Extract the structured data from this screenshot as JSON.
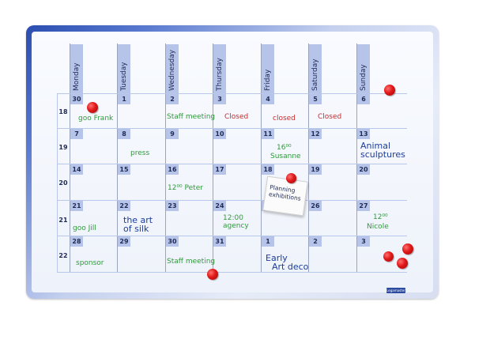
{
  "days": [
    "Monday",
    "Tuesday",
    "Wednesday",
    "Thursday",
    "Friday",
    "Saturday",
    "Sunday"
  ],
  "weeks": [
    "18",
    "19",
    "20",
    "21",
    "22"
  ],
  "dates": [
    [
      "30",
      "1",
      "2",
      "3",
      "4",
      "5",
      "6"
    ],
    [
      "7",
      "8",
      "9",
      "10",
      "11",
      "12",
      "13"
    ],
    [
      "14",
      "15",
      "16",
      "17",
      "18",
      "19",
      "20"
    ],
    [
      "21",
      "22",
      "23",
      "24",
      "25",
      "26",
      "27"
    ],
    [
      "28",
      "29",
      "30",
      "31",
      "1",
      "2",
      "3"
    ]
  ],
  "notes": {
    "goo_frank": "goo Frank",
    "staff_meeting_1": "Staff meeting",
    "closed_thu": "Closed",
    "closed_fri": "closed",
    "closed_sat": "Closed",
    "press": "press",
    "susanne_time": "16⁰⁰",
    "susanne": "Susanne",
    "animal_1": "Animal",
    "animal_2": "sculptures",
    "peter": "12⁰⁰ Peter",
    "goo_jill": "goo Jill",
    "art_silk_1": "the art",
    "art_silk_2": "of silk",
    "agency_time": "12:00",
    "agency": "agency",
    "nicole_time": "12⁰⁰",
    "nicole": "Nicole",
    "sponsor": "sponsor",
    "staff_meeting_2": "Staff meeting",
    "art_deco_1": "Early",
    "art_deco_2": "Art deco"
  },
  "card": {
    "line1": "Planning",
    "line2": "exhibitions"
  },
  "logo_text": "Legamaster",
  "colors": {
    "frame": "#2a4db0",
    "strip": "#b7c4ea",
    "green_marker": "#2e9a3a",
    "red_marker": "#cc2a2a",
    "blue_marker": "#1d3d9a",
    "magnet": "#e01818"
  }
}
